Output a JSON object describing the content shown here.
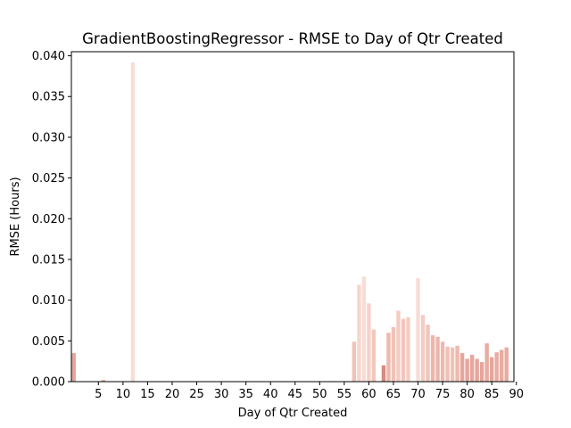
{
  "chart_data": {
    "type": "bar",
    "title": "GradientBoostingRegressor - RMSE to Day of Qtr Created",
    "xlabel": "Day of Qtr Created",
    "ylabel": "RMSE (Hours)",
    "xlim": [
      -0.5,
      89.5
    ],
    "ylim": [
      0,
      0.0405
    ],
    "x_ticks": [
      5,
      10,
      15,
      20,
      25,
      30,
      35,
      40,
      45,
      50,
      55,
      60,
      65,
      70,
      75,
      80,
      85,
      90
    ],
    "x_tick_labels": [
      "5",
      "10",
      "15",
      "20",
      "25",
      "30",
      "35",
      "40",
      "45",
      "50",
      "55",
      "60",
      "65",
      "70",
      "75",
      "80",
      "85",
      "90"
    ],
    "y_ticks": [
      0,
      0.005,
      0.01,
      0.015,
      0.02,
      0.025,
      0.03,
      0.035,
      0.04
    ],
    "y_tick_labels": [
      "0.000",
      "0.005",
      "0.010",
      "0.015",
      "0.020",
      "0.025",
      "0.030",
      "0.035",
      "0.040"
    ],
    "grid": false,
    "x": [
      0,
      6,
      12,
      57,
      58,
      59,
      60,
      61,
      62,
      63,
      64,
      65,
      66,
      67,
      68,
      69,
      70,
      71,
      72,
      73,
      74,
      75,
      76,
      77,
      78,
      79,
      80,
      81,
      82,
      83,
      84,
      85,
      86,
      87,
      88
    ],
    "values": [
      0.0035,
      0.0002,
      0.0392,
      0.0049,
      0.0119,
      0.0129,
      0.0096,
      0.0064,
      0.0,
      0.002,
      0.006,
      0.0067,
      0.0087,
      0.0077,
      0.0079,
      0.0,
      0.0127,
      0.0082,
      0.007,
      0.0057,
      0.0055,
      0.0049,
      0.0043,
      0.0042,
      0.0044,
      0.0035,
      0.0028,
      0.0033,
      0.0028,
      0.0024,
      0.0047,
      0.003,
      0.0036,
      0.0039,
      0.0042
    ],
    "colors": [
      "#e6a69c",
      "#e6a69c",
      "#f8dcd6",
      "#f0c3b8",
      "#f7d6ce",
      "#f8dcd6",
      "#f6d2ca",
      "#f2c8bd",
      "#f0c3b8",
      "#d98b80",
      "#eeb9ae",
      "#f0c3b8",
      "#f4ccc3",
      "#f2c6bb",
      "#f4ccc3",
      "#f0c3b8",
      "#f8dcd6",
      "#f4ccc3",
      "#f2c6bb",
      "#edb6ab",
      "#edb6ab",
      "#eeb9ae",
      "#f0c0b5",
      "#f0c3b8",
      "#eeb9ae",
      "#e6a69c",
      "#e6a69c",
      "#e6a69c",
      "#e6a69c",
      "#e6a69c",
      "#e8aca1",
      "#e6a69c",
      "#e8aca1",
      "#e8aca1",
      "#e8aca1"
    ]
  }
}
